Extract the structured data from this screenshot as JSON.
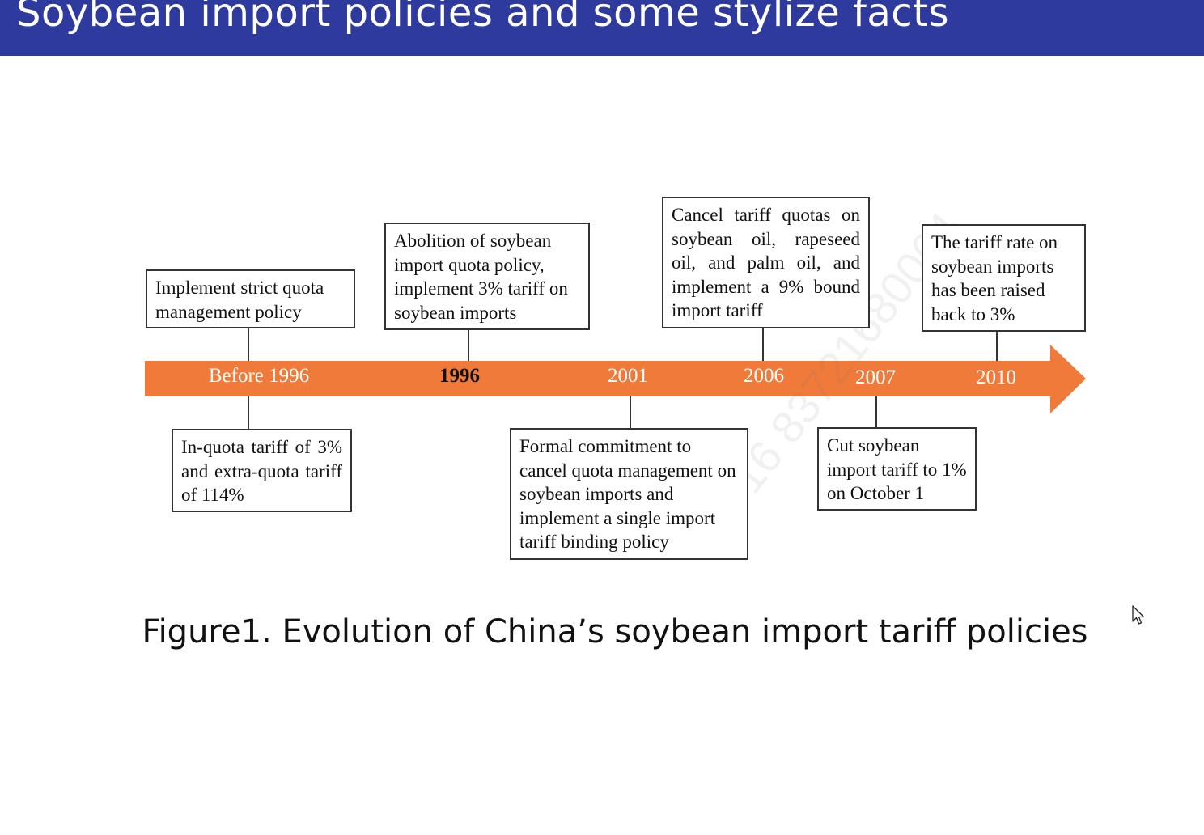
{
  "slide": {
    "title": "Soybean import policies and some stylize facts"
  },
  "colors": {
    "header": "#2e3a9e",
    "arrow": "#f07a3a",
    "box_border": "#333333"
  },
  "timeline": {
    "years": [
      "Before 1996",
      "1996",
      "2001",
      "2006",
      "2007",
      "2010"
    ],
    "events_above": [
      "Implement strict quota management policy",
      "Abolition of soybean import quota policy, implement 3% tariff on soybean imports",
      "Cancel tariff quotas on soybean oil, rapeseed oil, and palm oil, and implement a 9% bound import tariff",
      "The tariff rate on soybean imports has been raised back to 3%"
    ],
    "events_below": [
      "In-quota tariff of 3% and extra-quota tariff of 114%",
      "Formal commitment to cancel quota management on soybean imports and implement a single import tariff binding policy",
      "Cut soybean import tariff to 1% on October 1"
    ]
  },
  "figure": {
    "caption": "Figure1. Evolution of China’s soybean import tariff policies"
  },
  "watermark": "15716 83721680064",
  "icons": {
    "cursor": "mouse-pointer-icon"
  }
}
